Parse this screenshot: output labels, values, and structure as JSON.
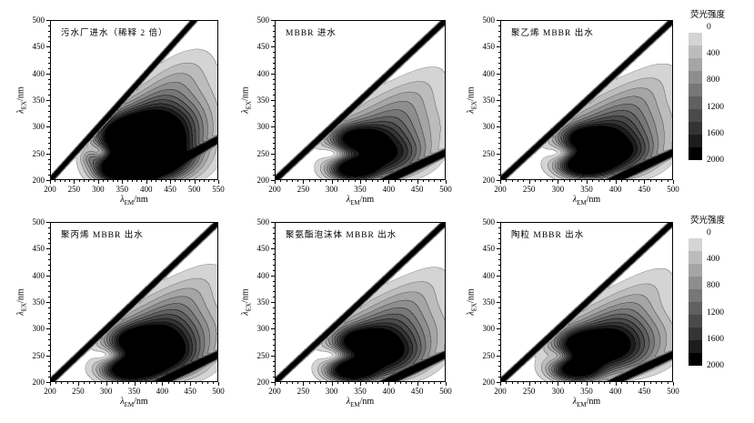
{
  "figure": {
    "background": "#ffffff",
    "axis_label_x": {
      "lambda": "λ",
      "sub": "EM",
      "suffix": "/nm"
    },
    "axis_label_y": {
      "lambda": "λ",
      "sub": "EX",
      "suffix": "/nm"
    },
    "colorbar": {
      "title": "荧光强度",
      "tick_labels": [
        "0",
        "400",
        "800",
        "1200",
        "1600",
        "2000"
      ],
      "grays": [
        "#d4d4d4",
        "#bcbcbc",
        "#a5a5a5",
        "#8e8e8e",
        "#777777",
        "#606060",
        "#4a4a4a",
        "#343434",
        "#1d1d1d",
        "#000000"
      ]
    }
  },
  "chart_data": {
    "type": "contour",
    "subtype": "fluorescence-excitation-emission-matrix",
    "intensity_label": "荧光强度",
    "x_axis": "λEM/nm",
    "y_axis": "λEX/nm",
    "contour_levels": {
      "min": 200,
      "step": 200,
      "max": 2000
    },
    "legend_position": "right-of-each-row",
    "grid": false,
    "peak_format": [
      "em_nm",
      "ex_nm",
      "amplitude",
      "sigma_em_nm",
      "sigma_ex_nm",
      "rotation_deg"
    ],
    "scatter_bands": {
      "rayleigh_first_order": {
        "line": "em=ex",
        "amp": 3200,
        "sigma_nm": 5.5
      },
      "rayleigh_second_order": {
        "line": "em=2ex",
        "amp": 2800,
        "sigma_nm": 11
      }
    },
    "panels": [
      {
        "title": "污水厂进水（稀释 2 倍）",
        "xlim": [
          200,
          550
        ],
        "ylim": [
          200,
          500
        ],
        "x_ticks": [
          200,
          250,
          300,
          350,
          400,
          450,
          500,
          550
        ],
        "y_ticks": [
          200,
          250,
          300,
          350,
          400,
          450,
          500
        ],
        "minor_tick_step_nm": 10,
        "peaks": [
          [
            345,
            220,
            2600,
            34,
            17,
            0
          ],
          [
            405,
            228,
            2100,
            55,
            24,
            0
          ],
          [
            360,
            281,
            2600,
            42,
            25,
            0
          ],
          [
            425,
            295,
            1800,
            65,
            35,
            0
          ],
          [
            420,
            250,
            1500,
            60,
            28,
            0
          ],
          [
            470,
            330,
            600,
            70,
            45,
            30
          ],
          [
            430,
            360,
            500,
            80,
            30,
            40
          ],
          [
            283,
            243,
            650,
            14,
            11,
            0
          ],
          [
            305,
            252,
            -900,
            20,
            12,
            0
          ]
        ]
      },
      {
        "title": "MBBR 进水",
        "xlim": [
          200,
          500
        ],
        "ylim": [
          200,
          500
        ],
        "x_ticks": [
          200,
          250,
          300,
          350,
          400,
          450,
          500
        ],
        "y_ticks": [
          200,
          250,
          300,
          350,
          400,
          450,
          500
        ],
        "minor_tick_step_nm": 10,
        "peaks": [
          [
            337,
            219,
            2300,
            28,
            14,
            0
          ],
          [
            380,
            228,
            1100,
            48,
            20,
            0
          ],
          [
            339,
            276,
            1500,
            30,
            17,
            0
          ],
          [
            370,
            283,
            900,
            55,
            26,
            0
          ],
          [
            408,
            252,
            1050,
            42,
            22,
            0
          ],
          [
            420,
            310,
            600,
            65,
            40,
            0
          ],
          [
            430,
            350,
            400,
            70,
            28,
            42
          ],
          [
            305,
            250,
            -600,
            16,
            11,
            0
          ]
        ]
      },
      {
        "title": "聚乙烯 MBBR 出水",
        "xlim": [
          200,
          500
        ],
        "ylim": [
          200,
          500
        ],
        "x_ticks": [
          200,
          250,
          300,
          350,
          400,
          450,
          500
        ],
        "y_ticks": [
          200,
          250,
          300,
          350,
          400,
          450,
          500
        ],
        "minor_tick_step_nm": 10,
        "peaks": [
          [
            346,
            227,
            2400,
            30,
            15,
            0
          ],
          [
            385,
            232,
            1200,
            50,
            22,
            0
          ],
          [
            344,
            277,
            1600,
            30,
            17,
            0
          ],
          [
            380,
            286,
            1000,
            55,
            28,
            0
          ],
          [
            412,
            256,
            1000,
            42,
            22,
            0
          ],
          [
            425,
            312,
            650,
            65,
            42,
            0
          ],
          [
            432,
            352,
            420,
            72,
            28,
            42
          ],
          [
            305,
            250,
            -600,
            16,
            11,
            0
          ]
        ]
      },
      {
        "title": "聚丙烯 MBBR 出水",
        "xlim": [
          200,
          500
        ],
        "ylim": [
          200,
          500
        ],
        "x_ticks": [
          200,
          250,
          300,
          350,
          400,
          450,
          500
        ],
        "y_ticks": [
          200,
          250,
          300,
          350,
          400,
          450,
          500
        ],
        "minor_tick_step_nm": 10,
        "peaks": [
          [
            342,
            222,
            2500,
            32,
            15,
            0
          ],
          [
            385,
            230,
            1300,
            52,
            22,
            0
          ],
          [
            352,
            277,
            1700,
            34,
            18,
            0
          ],
          [
            390,
            287,
            1100,
            58,
            28,
            0
          ],
          [
            412,
            255,
            1150,
            44,
            23,
            0
          ],
          [
            428,
            312,
            700,
            66,
            42,
            0
          ],
          [
            434,
            354,
            430,
            72,
            28,
            42
          ],
          [
            303,
            249,
            -600,
            16,
            11,
            0
          ]
        ]
      },
      {
        "title": "聚氨酯泡沫体 MBBR 出水",
        "xlim": [
          200,
          500
        ],
        "ylim": [
          200,
          500
        ],
        "x_ticks": [
          200,
          250,
          300,
          350,
          400,
          450,
          500
        ],
        "y_ticks": [
          200,
          250,
          300,
          350,
          400,
          450,
          500
        ],
        "minor_tick_step_nm": 10,
        "peaks": [
          [
            334,
            221,
            2450,
            28,
            14,
            0
          ],
          [
            378,
            229,
            1150,
            50,
            21,
            0
          ],
          [
            346,
            276,
            1600,
            32,
            17,
            0
          ],
          [
            382,
            285,
            1000,
            56,
            27,
            0
          ],
          [
            410,
            254,
            1050,
            43,
            22,
            0
          ],
          [
            424,
            310,
            650,
            65,
            41,
            0
          ],
          [
            431,
            351,
            410,
            71,
            28,
            42
          ],
          [
            304,
            249,
            -600,
            16,
            11,
            0
          ]
        ]
      },
      {
        "title": "陶粒 MBBR 出水",
        "xlim": [
          200,
          500
        ],
        "ylim": [
          200,
          500
        ],
        "x_ticks": [
          200,
          250,
          300,
          350,
          400,
          450,
          500
        ],
        "y_ticks": [
          200,
          250,
          300,
          350,
          400,
          450,
          500
        ],
        "minor_tick_step_nm": 10,
        "peaks": [
          [
            332,
            222,
            2350,
            30,
            15,
            0
          ],
          [
            385,
            248,
            1400,
            55,
            24,
            0
          ],
          [
            340,
            272,
            1500,
            32,
            18,
            0
          ],
          [
            385,
            283,
            1000,
            56,
            27,
            0
          ],
          [
            420,
            300,
            750,
            60,
            40,
            0
          ],
          [
            430,
            350,
            420,
            70,
            28,
            42
          ],
          [
            303,
            248,
            -550,
            15,
            11,
            0
          ]
        ]
      }
    ]
  }
}
